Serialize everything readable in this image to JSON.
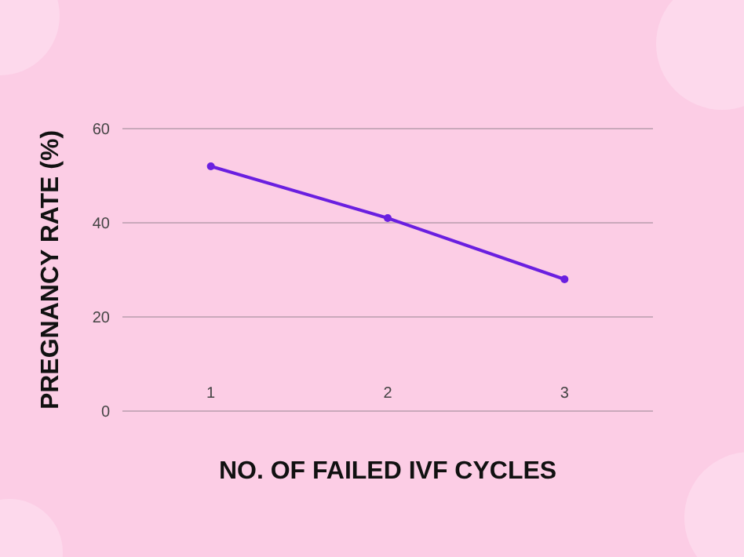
{
  "chart_data": {
    "type": "line",
    "xlabel": "NO. OF FAILED IVF CYCLES",
    "ylabel": "PREGNANCY RATE (%)",
    "x": [
      1,
      2,
      3
    ],
    "series": [
      {
        "color": "#6a1fe0",
        "values": [
          52,
          41,
          28
        ]
      }
    ],
    "xlim": [
      0.5,
      3.5
    ],
    "xticks": [
      1,
      2,
      3
    ],
    "ylim": [
      0,
      60
    ],
    "yticks": [
      0,
      20,
      40,
      60
    ],
    "grid": "y",
    "marker": "circle",
    "line_style": "solid"
  }
}
